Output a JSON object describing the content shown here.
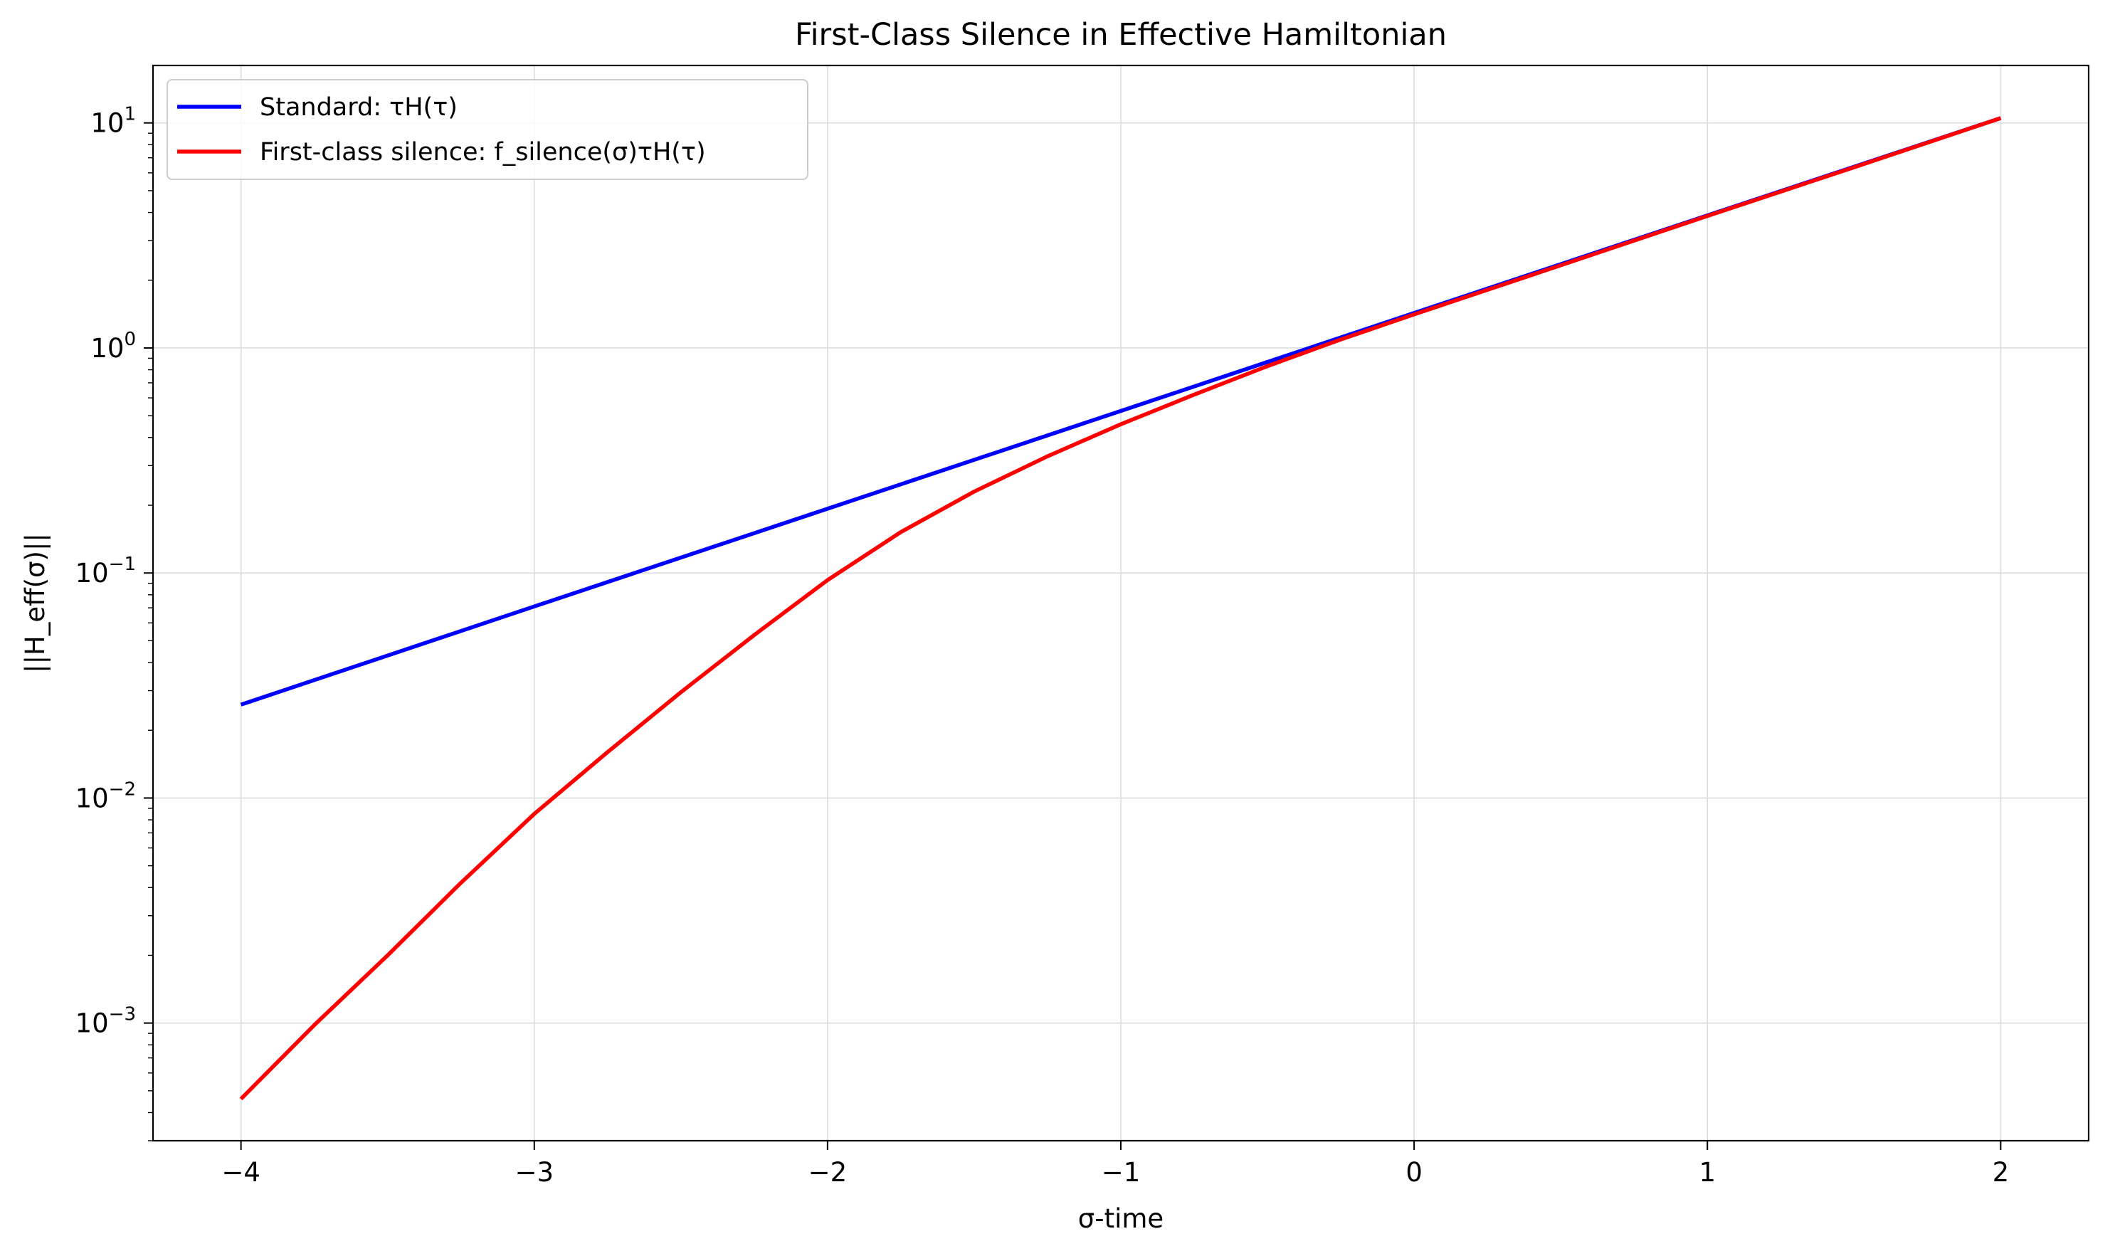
{
  "chart_data": {
    "type": "line",
    "title": "First-Class Silence in Effective Hamiltonian",
    "xlabel": "σ-time",
    "ylabel": "||H_eff(σ)||",
    "yscale": "log",
    "xlim": [
      -4.3,
      2.3
    ],
    "ylim": [
      0.0003,
      18
    ],
    "xticks": [
      -4,
      -3,
      -2,
      -1,
      0,
      1,
      2
    ],
    "xtick_labels": [
      "−4",
      "−3",
      "−2",
      "−1",
      "0",
      "1",
      "2"
    ],
    "yticks": [
      0.001,
      0.01,
      0.1,
      1,
      10
    ],
    "ytick_exponents": [
      "−3",
      "−2",
      "−1",
      "0",
      "1"
    ],
    "grid": true,
    "legend_position": "top-left",
    "series": [
      {
        "name": "Standard: τH(τ)",
        "color": "#0000ff",
        "x": [
          -4,
          -3,
          -2,
          -1,
          0,
          1,
          2
        ],
        "y": [
          0.026,
          0.071,
          0.193,
          0.525,
          1.43,
          3.88,
          10.5
        ]
      },
      {
        "name": "First-class silence: f_silence(σ)τH(τ)",
        "color": "#ff0000",
        "x": [
          -4,
          -3.75,
          -3.5,
          -3.25,
          -3,
          -2.75,
          -2.5,
          -2.25,
          -2,
          -1.75,
          -1.5,
          -1.25,
          -1,
          -0.75,
          -0.5,
          -0.25,
          0,
          0.5,
          1,
          1.5,
          2
        ],
        "y": [
          0.00046,
          0.00098,
          0.002,
          0.0042,
          0.0085,
          0.016,
          0.0295,
          0.053,
          0.093,
          0.152,
          0.23,
          0.33,
          0.458,
          0.62,
          0.83,
          1.09,
          1.41,
          2.33,
          3.86,
          6.35,
          10.5
        ]
      }
    ]
  }
}
